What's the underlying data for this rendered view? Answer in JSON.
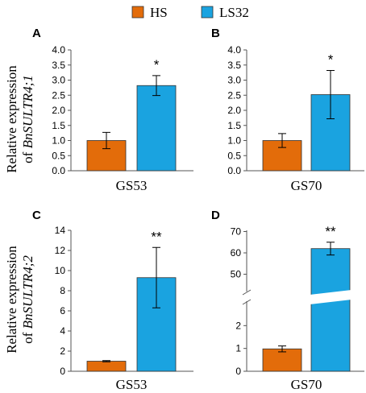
{
  "legend": [
    {
      "label": "HS",
      "color": "#E36C0A"
    },
    {
      "label": "LS32",
      "color": "#1AA3E0"
    }
  ],
  "row_labels": [
    {
      "line1": "Relative expression",
      "line2_prefix": "of ",
      "gene": "BnSULTR4;1"
    },
    {
      "line1": "Relative expression",
      "line2_prefix": "of ",
      "gene": "BnSULTR4;2"
    }
  ],
  "chart_data": [
    {
      "panel": "A",
      "type": "bar",
      "category": "GS53",
      "ylim": [
        0,
        4.0
      ],
      "ticks": [
        "0.0",
        "0.5",
        "1.0",
        "1.5",
        "2.0",
        "2.5",
        "3.0",
        "3.5",
        "4.0"
      ],
      "series": [
        {
          "name": "HS",
          "value": 1.0,
          "error": 0.27
        },
        {
          "name": "LS32",
          "value": 2.82,
          "error": 0.33
        }
      ],
      "significance": "*"
    },
    {
      "panel": "B",
      "type": "bar",
      "category": "GS70",
      "ylim": [
        0,
        4.0
      ],
      "ticks": [
        "0.0",
        "0.5",
        "1.0",
        "1.5",
        "2.0",
        "2.5",
        "3.0",
        "3.5",
        "4.0"
      ],
      "series": [
        {
          "name": "HS",
          "value": 1.0,
          "error": 0.23
        },
        {
          "name": "LS32",
          "value": 2.52,
          "error": 0.8
        }
      ],
      "significance": "*"
    },
    {
      "panel": "C",
      "type": "bar",
      "category": "GS53",
      "ylim": [
        0,
        14
      ],
      "ticks": [
        "0",
        "2",
        "4",
        "6",
        "8",
        "10",
        "12",
        "14"
      ],
      "series": [
        {
          "name": "HS",
          "value": 1.0,
          "error": 0.06
        },
        {
          "name": "LS32",
          "value": 9.3,
          "error": 3.0
        }
      ],
      "significance": "**"
    },
    {
      "panel": "D",
      "type": "bar",
      "category": "GS70",
      "broken_axis": true,
      "ylim_lower": [
        0,
        3
      ],
      "ylim_upper": [
        40,
        70
      ],
      "ticks_lower": [
        "0",
        "1",
        "2"
      ],
      "ticks_upper": [
        "50",
        "60",
        "70"
      ],
      "series": [
        {
          "name": "HS",
          "value": 0.98,
          "error": 0.13
        },
        {
          "name": "LS32",
          "value": 62,
          "error": 3.0
        }
      ],
      "significance": "**"
    }
  ]
}
